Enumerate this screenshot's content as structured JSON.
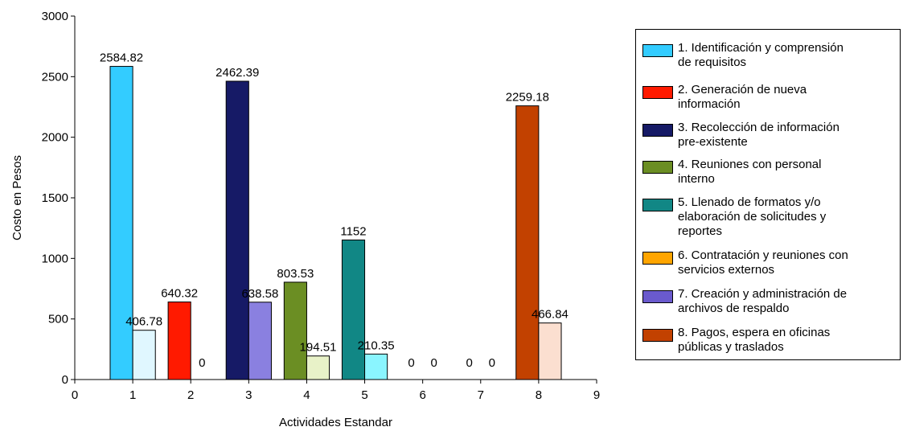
{
  "chart_data": {
    "type": "bar",
    "xlabel": "Actividades Estandar",
    "ylabel": "Costo en Pesos",
    "xlim": [
      0,
      9
    ],
    "ylim": [
      0,
      3000
    ],
    "x_ticks": [
      "0",
      "1",
      "2",
      "3",
      "4",
      "5",
      "6",
      "7",
      "8",
      "9"
    ],
    "y_ticks": [
      "0",
      "500",
      "1000",
      "1500",
      "2000",
      "2500",
      "3000"
    ],
    "grid": false,
    "legend_position": "right",
    "categories": [
      1,
      2,
      3,
      4,
      5,
      6,
      7,
      8
    ],
    "series": [
      {
        "values": [
          2584.82,
          640.32,
          2462.39,
          803.53,
          1152,
          0,
          0,
          2259.18
        ],
        "labels": [
          "2584.82",
          "640.32",
          "2462.39",
          "803.53",
          "1152",
          "0",
          "0",
          "2259.18"
        ],
        "colors": [
          "#33CCFF",
          "#FF1A00",
          "#161A66",
          "#6B8E23",
          "#118785",
          "#FFA500",
          "#6A5ACD",
          "#C24100"
        ]
      },
      {
        "values": [
          406.78,
          0,
          638.58,
          194.51,
          210.35,
          0,
          0,
          466.84
        ],
        "labels": [
          "406.78",
          "0",
          "638.58",
          "194.51",
          "210.35",
          "0",
          "0",
          "466.84"
        ],
        "colors": [
          "#E0F7FF",
          "#FFC0B0",
          "#8A80E0",
          "#E8F2C8",
          "#8AF5FF",
          "#FFE0A8",
          "#C8C0F0",
          "#FBDFD0"
        ]
      }
    ],
    "legend": [
      {
        "label": "1. Identificación y comprensión\nde requisitos",
        "color": "#33CCFF"
      },
      {
        "label": "2. Generación de nueva\ninformación",
        "color": "#FF1A00"
      },
      {
        "label": "3. Recolección de información\npre-existente",
        "color": "#161A66"
      },
      {
        "label": "4. Reuniones con personal\ninterno",
        "color": "#6B8E23"
      },
      {
        "label": "5. Llenado de formatos y/o\nelaboración de solicitudes y\nreportes",
        "color": "#118785"
      },
      {
        "label": "6. Contratación y reuniones con\nservicios externos",
        "color": "#FFA500"
      },
      {
        "label": "7. Creación y administración de\narchivos de respaldo",
        "color": "#6A5ACD"
      },
      {
        "label": "8. Pagos, espera en oficinas\npúblicas y traslados",
        "color": "#C24100"
      }
    ]
  }
}
